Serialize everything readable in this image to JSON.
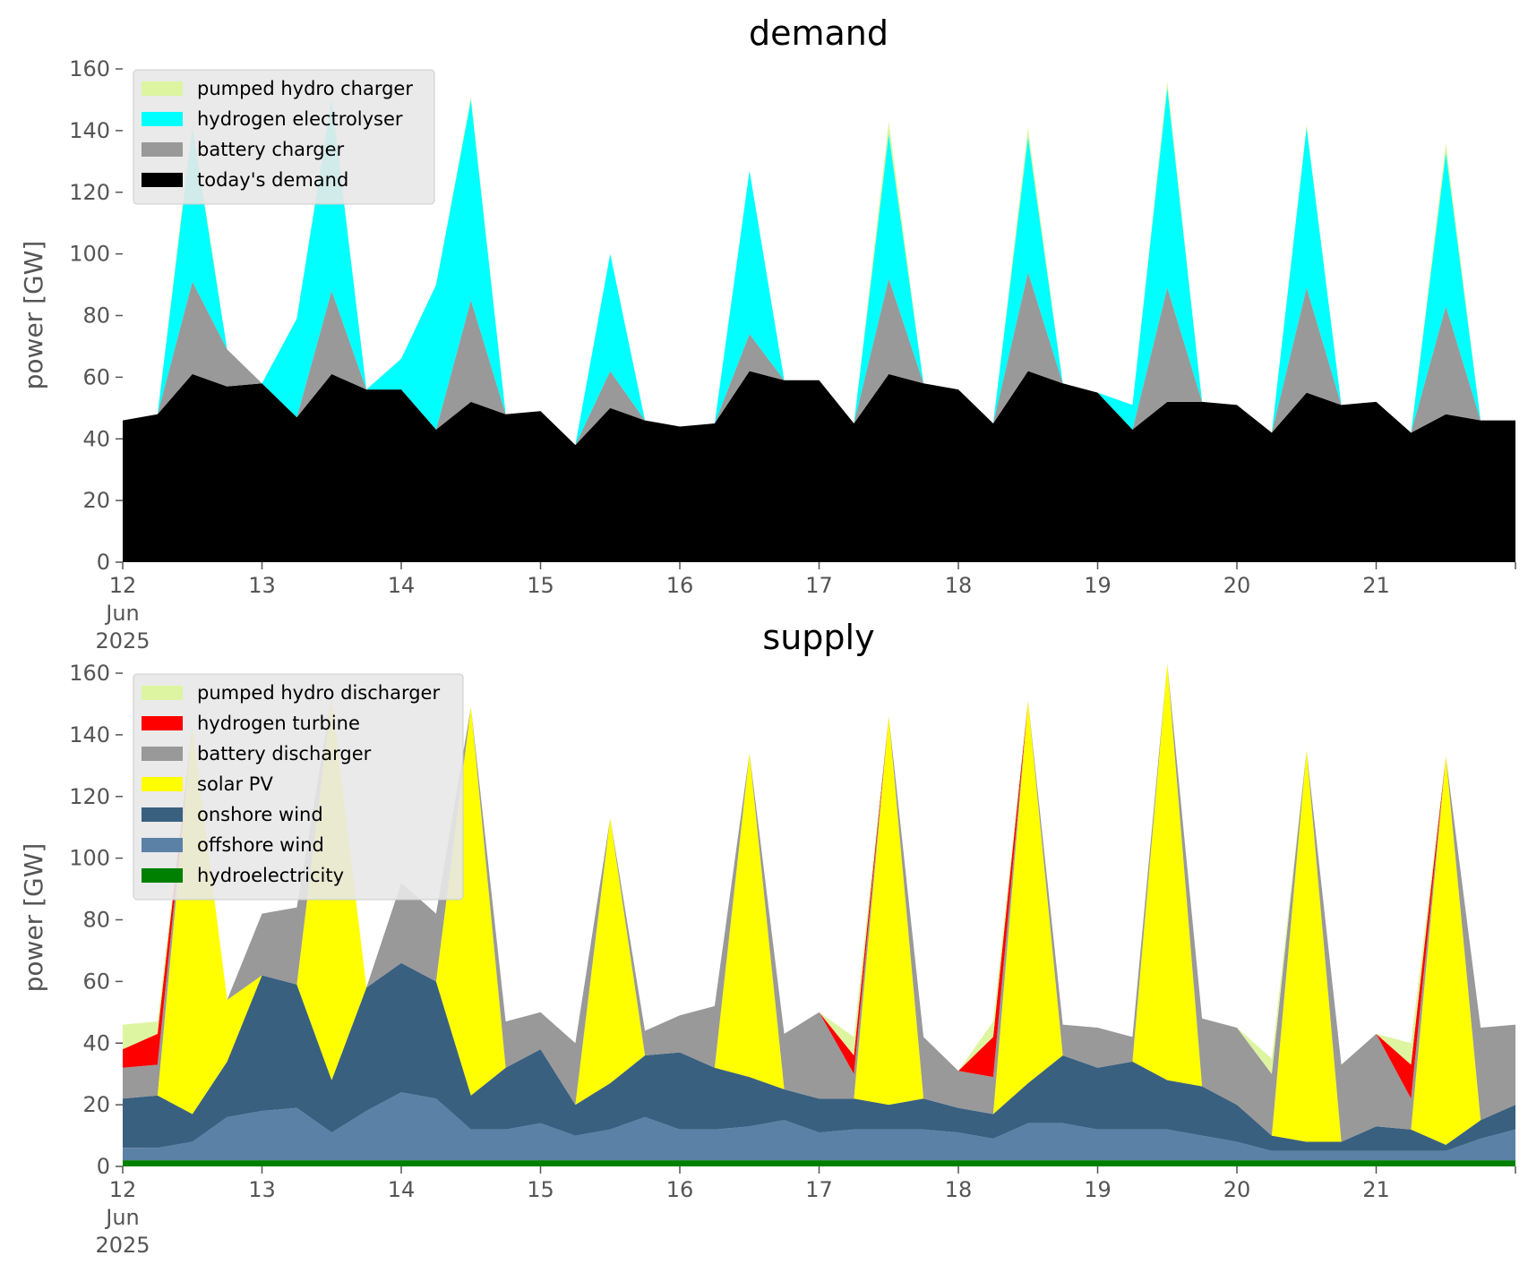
{
  "chart_data": [
    {
      "type": "area",
      "title": "demand",
      "ylabel": "power [GW]",
      "ylim": [
        0,
        160
      ],
      "yticks": [
        "0",
        "20",
        "40",
        "60",
        "80",
        "100",
        "120",
        "140",
        "160"
      ],
      "xlim": [
        "2025-06-12 00:00",
        "2025-06-22 00:00"
      ],
      "xticks": [
        "12",
        "13",
        "14",
        "15",
        "16",
        "17",
        "18",
        "19",
        "20",
        "21"
      ],
      "xtick_sublabels": [
        "Jun",
        "2025"
      ],
      "grid": false,
      "background": "#ffffff",
      "legend_position": "top-left",
      "stacked": true,
      "x_resolution": "6-hourly (00:00, 06:00, 12:00, 18:00 from 2025-06-12 00:00 to 2025-06-22 00:00), 41 points",
      "series": [
        {
          "name": "today's demand",
          "color": "#000000",
          "values": [
            46,
            48,
            61,
            57,
            58,
            47,
            61,
            56,
            56,
            43,
            52,
            48,
            49,
            38,
            50,
            46,
            44,
            45,
            62,
            59,
            59,
            45,
            61,
            58,
            56,
            45,
            62,
            58,
            55,
            43,
            52,
            52,
            51,
            42,
            55,
            51,
            52,
            42,
            48,
            46,
            46
          ]
        },
        {
          "name": "battery charger",
          "color": "#999999",
          "values": [
            0,
            0,
            30,
            12,
            0,
            0,
            27,
            0,
            0,
            0,
            33,
            0,
            0,
            0,
            12,
            0,
            0,
            0,
            12,
            0,
            0,
            0,
            31,
            0,
            0,
            0,
            32,
            0,
            0,
            0,
            37,
            0,
            0,
            0,
            34,
            0,
            0,
            0,
            35,
            0,
            0
          ]
        },
        {
          "name": "hydrogen electrolyser",
          "color": "#00ffff",
          "values": [
            0,
            0,
            50,
            0,
            0,
            32,
            62,
            0,
            10,
            47,
            65,
            0,
            0,
            0,
            38,
            0,
            0,
            0,
            53,
            0,
            0,
            0,
            47,
            0,
            0,
            0,
            44,
            0,
            0,
            8,
            65,
            0,
            0,
            0,
            52,
            0,
            0,
            0,
            50,
            0,
            0
          ]
        },
        {
          "name": "pumped hydro charger",
          "color": "#ddf5a0",
          "values": [
            0,
            0,
            2,
            0,
            0,
            0,
            1,
            0,
            0,
            0,
            1,
            0,
            0,
            0,
            0,
            0,
            0,
            0,
            0,
            0,
            0,
            0,
            4,
            0,
            0,
            0,
            3,
            0,
            0,
            0,
            2,
            0,
            0,
            0,
            1,
            0,
            0,
            0,
            3,
            0,
            0
          ]
        }
      ],
      "legend_order": [
        "pumped hydro charger",
        "hydrogen electrolyser",
        "battery charger",
        "today's demand"
      ]
    },
    {
      "type": "area",
      "title": "supply",
      "ylabel": "power [GW]",
      "ylim": [
        0,
        160
      ],
      "yticks": [
        "0",
        "20",
        "40",
        "60",
        "80",
        "100",
        "120",
        "140",
        "160"
      ],
      "xlim": [
        "2025-06-12 00:00",
        "2025-06-22 00:00"
      ],
      "xticks": [
        "12",
        "13",
        "14",
        "15",
        "16",
        "17",
        "18",
        "19",
        "20",
        "21"
      ],
      "xtick_sublabels": [
        "Jun",
        "2025"
      ],
      "grid": false,
      "background": "#ffffff",
      "legend_position": "top-left",
      "stacked": true,
      "x_resolution": "6-hourly (00:00, 06:00, 12:00, 18:00 from 2025-06-12 00:00 to 2025-06-22 00:00), 41 points",
      "series": [
        {
          "name": "hydroelectricity",
          "color": "#008000",
          "values": [
            2,
            2,
            2,
            2,
            2,
            2,
            2,
            2,
            2,
            2,
            2,
            2,
            2,
            2,
            2,
            2,
            2,
            2,
            2,
            2,
            2,
            2,
            2,
            2,
            2,
            2,
            2,
            2,
            2,
            2,
            2,
            2,
            2,
            2,
            2,
            2,
            2,
            2,
            2,
            2,
            2
          ]
        },
        {
          "name": "offshore wind",
          "color": "#5b81a6",
          "values": [
            4,
            4,
            6,
            14,
            16,
            17,
            9,
            16,
            22,
            20,
            10,
            10,
            12,
            8,
            10,
            14,
            10,
            10,
            11,
            13,
            9,
            10,
            10,
            10,
            9,
            7,
            12,
            12,
            10,
            10,
            10,
            8,
            6,
            3,
            3,
            3,
            3,
            3,
            3,
            7,
            10
          ]
        },
        {
          "name": "onshore wind",
          "color": "#3a6080",
          "values": [
            16,
            17,
            9,
            18,
            44,
            40,
            17,
            40,
            42,
            38,
            11,
            20,
            24,
            10,
            15,
            20,
            25,
            20,
            16,
            10,
            11,
            10,
            8,
            10,
            8,
            8,
            13,
            22,
            20,
            22,
            16,
            16,
            12,
            5,
            3,
            3,
            8,
            7,
            2,
            6,
            8
          ]
        },
        {
          "name": "solar PV",
          "color": "#ffff00",
          "values": [
            0,
            0,
            126,
            20,
            0,
            0,
            124,
            0,
            0,
            0,
            126,
            0,
            0,
            0,
            86,
            0,
            0,
            0,
            105,
            0,
            0,
            0,
            126,
            0,
            0,
            0,
            124,
            0,
            0,
            0,
            135,
            0,
            0,
            0,
            127,
            0,
            0,
            0,
            126,
            0,
            0
          ]
        },
        {
          "name": "battery discharger",
          "color": "#999999",
          "values": [
            10,
            10,
            0,
            0,
            20,
            25,
            0,
            0,
            26,
            22,
            0,
            15,
            12,
            20,
            0,
            8,
            12,
            20,
            0,
            18,
            28,
            8,
            0,
            20,
            12,
            12,
            0,
            10,
            13,
            8,
            0,
            22,
            25,
            20,
            0,
            25,
            30,
            10,
            0,
            30,
            26
          ]
        },
        {
          "name": "hydrogen turbine",
          "color": "#ff0000",
          "values": [
            6,
            10,
            0,
            0,
            0,
            0,
            0,
            0,
            0,
            0,
            0,
            0,
            0,
            0,
            0,
            0,
            0,
            0,
            0,
            0,
            0,
            6,
            0,
            0,
            0,
            13,
            0,
            0,
            0,
            0,
            0,
            0,
            0,
            0,
            0,
            0,
            0,
            11,
            0,
            0,
            0
          ]
        },
        {
          "name": "pumped hydro discharger",
          "color": "#ddf5a0",
          "values": [
            8,
            4,
            0,
            0,
            0,
            0,
            0,
            0,
            0,
            0,
            0,
            0,
            0,
            0,
            0,
            0,
            0,
            0,
            0,
            0,
            0,
            6,
            0,
            0,
            0,
            5,
            0,
            0,
            0,
            0,
            0,
            0,
            0,
            5,
            0,
            0,
            0,
            7,
            0,
            0,
            0
          ]
        }
      ],
      "legend_order": [
        "pumped hydro discharger",
        "hydrogen turbine",
        "battery discharger",
        "solar PV",
        "onshore wind",
        "offshore wind",
        "hydroelectricity"
      ]
    }
  ]
}
